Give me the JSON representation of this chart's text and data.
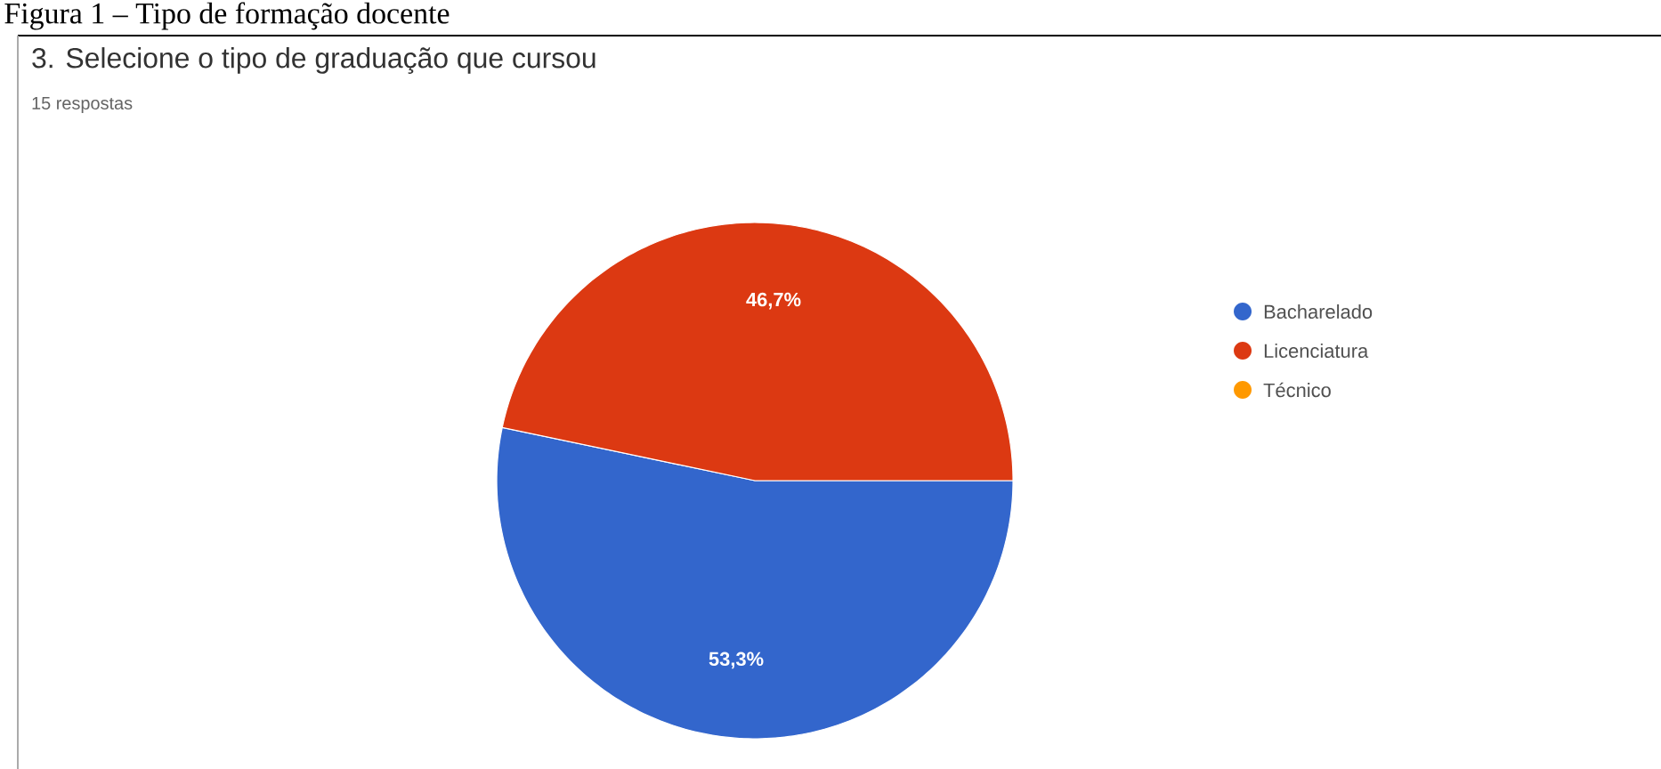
{
  "chart_data": {
    "type": "pie",
    "title": "3. Selecione o tipo de graduação que cursou",
    "subtitle": "15 respostas",
    "annotations": [
      "Figura 1 – Tipo de formação docente"
    ],
    "categories": [
      "Bacharelado",
      "Licenciatura",
      "Técnico"
    ],
    "values": [
      53.3,
      46.7,
      0
    ],
    "colors": [
      "#3366cc",
      "#dc3912",
      "#ff9900"
    ],
    "value_labels": [
      "53,3%",
      "46,7%",
      null
    ],
    "legend": "right"
  }
}
